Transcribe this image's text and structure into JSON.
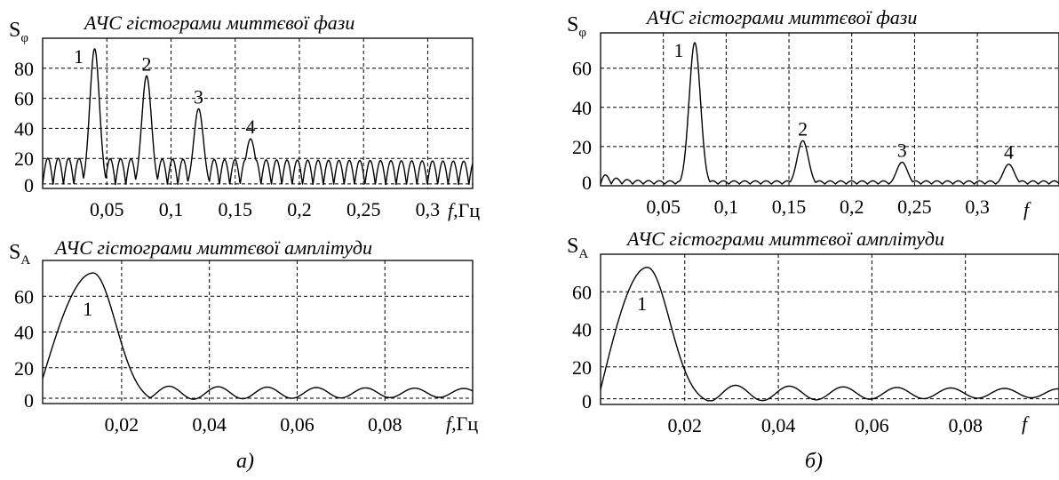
{
  "panels": [
    {
      "label": "а)"
    },
    {
      "label": "б)"
    }
  ],
  "chart_data": [
    {
      "type": "line",
      "title": "АЧС гістограми миттєвої фази",
      "ylabel_main": "S",
      "ylabel_sub": "φ",
      "xlabel_var": "f",
      "xlabel_unit": ",Гц",
      "xlim": [
        0,
        0.335
      ],
      "ylim": [
        0,
        100
      ],
      "xticks": [
        0.05,
        0.1,
        0.15,
        0.2,
        0.25,
        0.3
      ],
      "xtick_labels": [
        "0,05",
        "0,1",
        "0,15",
        "0,2",
        "0,25",
        "0,3"
      ],
      "yticks": [
        0,
        20,
        40,
        60,
        80
      ],
      "ytick_labels": [
        "0",
        "20",
        "40",
        "60",
        "80"
      ],
      "hlines": [
        3,
        20,
        40,
        60,
        80
      ],
      "grid": true,
      "peaks": [
        {
          "label": "1",
          "x": 0.0405,
          "y": 93
        },
        {
          "label": "2",
          "x": 0.081,
          "y": 75
        },
        {
          "label": "3",
          "x": 0.1215,
          "y": 53
        },
        {
          "label": "4",
          "x": 0.162,
          "y": 33
        }
      ],
      "peak_width": 0.0038,
      "ripple_period": 0.0081,
      "ripple_amplitude": 20,
      "ripple_decay": 0.994,
      "ripple_floor": 15,
      "ripple_min": 3,
      "series": [
        {
          "values": []
        }
      ]
    },
    {
      "type": "line",
      "title": "АЧС гістограми миттєвої амплітуди",
      "ylabel_main": "S",
      "ylabel_sub": "A",
      "xlabel_var": "f",
      "xlabel_unit": ",Гц",
      "xlim": [
        0.002,
        0.1
      ],
      "ylim": [
        0,
        80
      ],
      "xticks": [
        0.02,
        0.04,
        0.06,
        0.08
      ],
      "xtick_labels": [
        "0,02",
        "0,04",
        "0,06",
        "0,08"
      ],
      "yticks": [
        0,
        20,
        40,
        60
      ],
      "ytick_labels": [
        "0",
        "20",
        "40",
        "60"
      ],
      "hlines": [
        3,
        20,
        40,
        60
      ],
      "grid": true,
      "main_lobe": {
        "label": "1",
        "x": 0.0135,
        "y": 73,
        "width": 0.0052,
        "start": 14
      },
      "tail": {
        "period": 0.0112,
        "mean": 6,
        "amplitude": 2.5,
        "decay": 0.6
      },
      "series": [
        {
          "values": []
        }
      ]
    },
    {
      "type": "line",
      "title": "АЧС гістограми миттєвої фази",
      "ylabel_main": "S",
      "ylabel_sub": "φ",
      "xlabel_var": "f",
      "xlabel_unit": "",
      "xlim": [
        0,
        0.365
      ],
      "ylim": [
        0,
        78
      ],
      "xticks": [
        0.05,
        0.1,
        0.15,
        0.2,
        0.25,
        0.3
      ],
      "xtick_labels": [
        "0,05",
        "0,1",
        "0,15",
        "0,2",
        "0,25",
        "0,3"
      ],
      "yticks": [
        0,
        20,
        40,
        60
      ],
      "ytick_labels": [
        "0",
        "20",
        "40",
        "60"
      ],
      "hlines": [
        20,
        40,
        60
      ],
      "grid": true,
      "peaks": [
        {
          "label": "1",
          "x": 0.075,
          "y": 73
        },
        {
          "label": "2",
          "x": 0.161,
          "y": 23
        },
        {
          "label": "3",
          "x": 0.24,
          "y": 12
        },
        {
          "label": "4",
          "x": 0.325,
          "y": 11
        }
      ],
      "peak_width": 0.0045,
      "ripple_period": 0.0085,
      "ripple_amplitude": 8,
      "ripple_decay": 0.4,
      "ripple_floor": 4,
      "ripple_min": 1,
      "series": [
        {
          "values": []
        }
      ]
    },
    {
      "type": "line",
      "title": "АЧС гістограми миттєвої амплітуди",
      "ylabel_main": "S",
      "ylabel_sub": "A",
      "xlabel_var": "f",
      "xlabel_unit": "",
      "xlim": [
        0.002,
        0.1
      ],
      "ylim": [
        0,
        80
      ],
      "xticks": [
        0.02,
        0.04,
        0.06,
        0.08
      ],
      "xtick_labels": [
        "0,02",
        "0,04",
        "0,06",
        "0,08"
      ],
      "yticks": [
        0,
        20,
        40,
        60
      ],
      "ytick_labels": [
        "0",
        "20",
        "40",
        "60"
      ],
      "hlines": [
        3,
        20,
        40,
        60
      ],
      "grid": true,
      "main_lobe": {
        "label": "1",
        "x": 0.012,
        "y": 73,
        "width": 0.0048,
        "start": 8
      },
      "tail": {
        "period": 0.0115,
        "mean": 6,
        "amplitude": 3,
        "decay": 0.5
      },
      "series": [
        {
          "values": []
        }
      ]
    }
  ]
}
